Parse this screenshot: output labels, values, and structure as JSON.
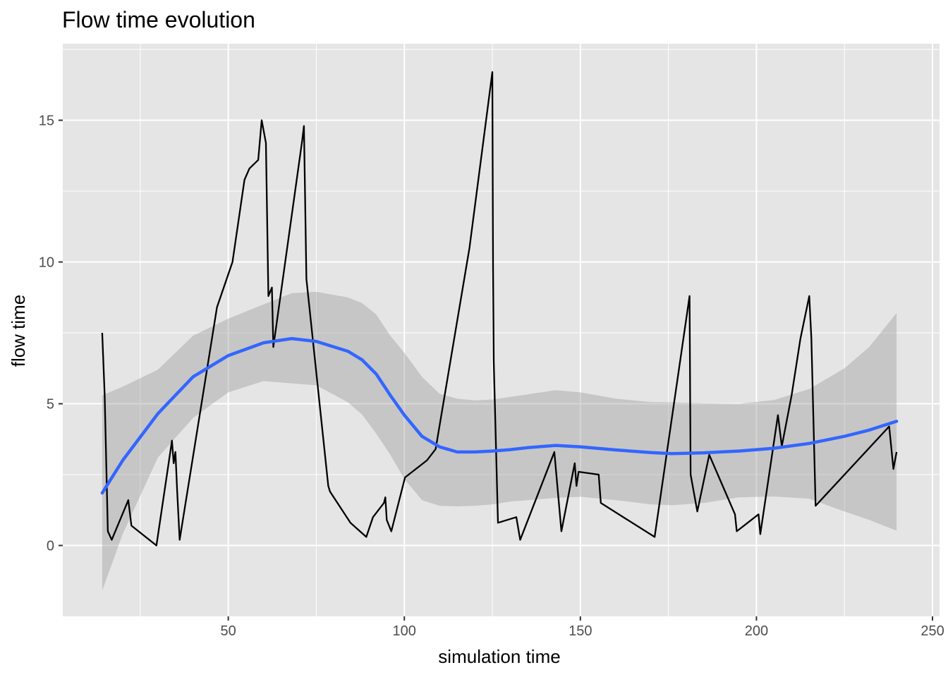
{
  "chart_data": {
    "type": "line",
    "title": "Flow time evolution",
    "xlabel": "simulation time",
    "ylabel": "flow time",
    "xlim": [
      3,
      252
    ],
    "ylim": [
      -2.5,
      17.7
    ],
    "x_ticks": [
      50,
      100,
      150,
      200,
      250
    ],
    "y_ticks": [
      0,
      5,
      10,
      15
    ],
    "x_tick_labels": [
      "50",
      "100",
      "150",
      "200",
      "250"
    ],
    "y_tick_labels": [
      "0",
      "5",
      "10",
      "15"
    ],
    "grid": true,
    "legend": "none",
    "colors": {
      "panel": "#e5e5e5",
      "grid": "#ffffff",
      "series_line": "#000000",
      "smooth_line": "#3366ff",
      "ribbon": "#999999"
    },
    "series": [
      {
        "kind": "line",
        "x": [
          14.2,
          14.9,
          15.8,
          16.9,
          21.6,
          22.5,
          29.6,
          34.0,
          34.5,
          35.0,
          35.5,
          36.2,
          46.8,
          51.2,
          54.6,
          56.0,
          58.5,
          59.5,
          60.7,
          61.4,
          62.4,
          62.8,
          71.0,
          71.5,
          72.2,
          78.4,
          78.9,
          84.7,
          89.2,
          91.1,
          94.2,
          94.6,
          95.0,
          96.3,
          100.2,
          106.4,
          108.9,
          118.5,
          125.0,
          125.2,
          125.4,
          126.6,
          131.8,
          132.9,
          142.6,
          144.6,
          148.4,
          148.9,
          149.5,
          155.2,
          155.8,
          171.1,
          181.0,
          181.3,
          183.2,
          186.6,
          193.9,
          194.4,
          200.6,
          201.1,
          206.1,
          207.2,
          210.0,
          212.5,
          215.0,
          215.6,
          216.8,
          237.7,
          238.9,
          239.8
        ],
        "y": [
          7.5,
          5.3,
          0.5,
          0.2,
          1.6,
          0.7,
          0.0,
          3.7,
          2.9,
          3.3,
          1.9,
          0.2,
          8.4,
          10.0,
          12.9,
          13.3,
          13.6,
          15.0,
          14.2,
          8.8,
          9.1,
          7.0,
          14.3,
          14.8,
          9.4,
          2.1,
          1.9,
          0.8,
          0.3,
          1.0,
          1.5,
          1.7,
          0.9,
          0.5,
          2.4,
          3.0,
          3.4,
          10.5,
          16.7,
          9.8,
          6.5,
          0.8,
          1.0,
          0.2,
          3.3,
          0.5,
          2.9,
          2.1,
          2.6,
          2.5,
          1.5,
          0.3,
          8.8,
          2.5,
          1.2,
          3.2,
          1.1,
          0.5,
          1.1,
          0.4,
          4.6,
          3.5,
          5.3,
          7.3,
          8.8,
          7.3,
          1.4,
          4.2,
          2.7,
          3.3
        ]
      },
      {
        "kind": "smooth",
        "x": [
          14.2,
          20,
          30,
          40,
          50,
          60,
          68,
          75,
          84,
          88,
          92,
          96,
          100,
          105,
          110,
          115,
          120,
          125,
          130,
          135,
          143,
          150,
          160,
          170,
          176,
          185,
          195,
          205,
          215,
          225,
          232,
          239.8
        ],
        "y": [
          1.85,
          3.0,
          4.65,
          5.95,
          6.7,
          7.15,
          7.3,
          7.2,
          6.85,
          6.55,
          6.05,
          5.3,
          4.6,
          3.85,
          3.48,
          3.3,
          3.3,
          3.33,
          3.38,
          3.45,
          3.53,
          3.48,
          3.37,
          3.28,
          3.24,
          3.27,
          3.33,
          3.43,
          3.6,
          3.85,
          4.07,
          4.38
        ],
        "ymin": [
          -1.6,
          0.4,
          3.1,
          4.5,
          5.4,
          5.8,
          5.72,
          5.65,
          5.05,
          4.62,
          3.95,
          3.2,
          2.35,
          1.6,
          1.4,
          1.38,
          1.4,
          1.45,
          1.55,
          1.6,
          1.68,
          1.72,
          1.6,
          1.45,
          1.42,
          1.5,
          1.7,
          1.73,
          1.65,
          1.2,
          0.9,
          0.52
        ],
        "ymax": [
          5.3,
          5.6,
          6.2,
          7.4,
          8.0,
          8.5,
          8.9,
          8.95,
          8.75,
          8.55,
          8.15,
          7.4,
          6.8,
          5.95,
          5.35,
          5.18,
          5.12,
          5.15,
          5.24,
          5.33,
          5.48,
          5.4,
          5.18,
          5.06,
          5.05,
          5.02,
          5.0,
          5.13,
          5.52,
          6.25,
          7.0,
          8.2
        ]
      }
    ]
  }
}
